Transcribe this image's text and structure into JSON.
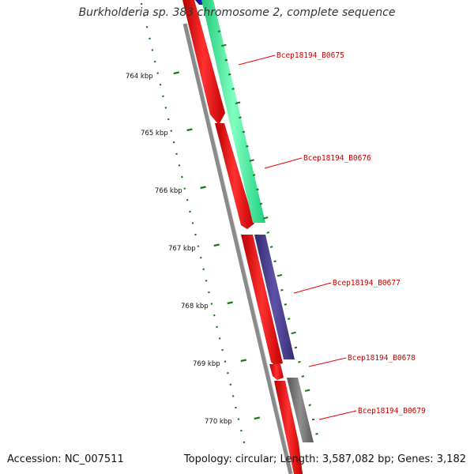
{
  "title": "Burkholderia sp. 383 chromosome 2, complete sequence",
  "footer": {
    "accession": "Accession: NC_007511",
    "summary": "Topology: circular; Length: 3,587,082 bp; Genes: 3,182"
  },
  "ruler": {
    "labels": [
      "764 kbp",
      "765 kbp",
      "766 kbp",
      "767 kbp",
      "768 kbp",
      "769 kbp",
      "770 kbp"
    ]
  },
  "genes": [
    {
      "label": "Bcep18194_B0675",
      "strand": "forward",
      "color": "#33ff99"
    },
    {
      "label": "Bcep18194_B0676",
      "strand": "forward",
      "color": "#33ff99"
    },
    {
      "label": "Bcep18194_B0677",
      "strand": "forward",
      "color": "#4a3f8f"
    },
    {
      "label": "Bcep18194_B0678",
      "strand": "reverse",
      "color": "#ff0000"
    },
    {
      "label": "Bcep18194_B0679",
      "strand": "forward",
      "color": "#707070"
    }
  ],
  "colors": {
    "backbone": "#8a8a8a",
    "cds": "#ff0000",
    "ticks": "#1a7a1a",
    "gene_label": "#cc0000",
    "leader": "#ee0000"
  }
}
